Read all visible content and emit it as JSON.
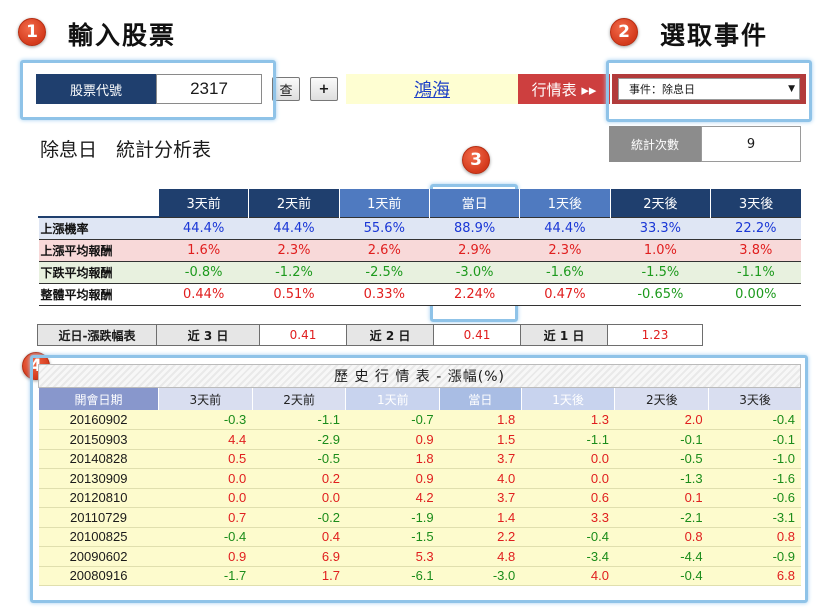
{
  "steps": [
    {
      "num": "1",
      "title": "輸入股票"
    },
    {
      "num": "2",
      "title": "選取事件"
    },
    {
      "num": "3"
    },
    {
      "num": "4"
    }
  ],
  "topbar": {
    "code_label": "股票代號",
    "code_value": "2317",
    "query_label": "查",
    "add_label": "+",
    "stock_name": "鴻海",
    "market_label": "行情表 ▸▸",
    "event_value": "事件：除息日"
  },
  "stats": {
    "title": "除息日　統計分析表",
    "count_label": "統計次數",
    "count_value": "9",
    "columns": [
      "3天前",
      "2天前",
      "1天前",
      "當日",
      "1天後",
      "2天後",
      "3天後"
    ],
    "rows": [
      {
        "label": "上漲機率",
        "values": [
          "44.4%",
          "44.4%",
          "55.6%",
          "88.9%",
          "44.4%",
          "33.3%",
          "22.2%"
        ]
      },
      {
        "label": "上漲平均報酬",
        "values": [
          "1.6%",
          "2.3%",
          "2.6%",
          "2.9%",
          "2.3%",
          "1.0%",
          "3.8%"
        ]
      },
      {
        "label": "下跌平均報酬",
        "values": [
          "-0.8%",
          "-1.2%",
          "-2.5%",
          "-3.0%",
          "-1.6%",
          "-1.5%",
          "-1.1%"
        ]
      },
      {
        "label": "整體平均報酬",
        "values": [
          "0.44%",
          "0.51%",
          "0.33%",
          "2.24%",
          "0.47%",
          "-0.65%",
          "0.00%"
        ]
      }
    ]
  },
  "recent": {
    "label": "近日-漲跌幅表",
    "items": [
      {
        "label": "近 3 日",
        "value": "0.41"
      },
      {
        "label": "近 2 日",
        "value": "0.41"
      },
      {
        "label": "近 1 日",
        "value": "1.23"
      }
    ]
  },
  "history": {
    "title": "歷 史 行 情 表 - 漲幅(%)",
    "date_header": "開會日期",
    "columns": [
      "3天前",
      "2天前",
      "1天前",
      "當日",
      "1天後",
      "2天後",
      "3天後"
    ],
    "rows": [
      {
        "date": "20160902",
        "values": [
          "-0.3",
          "-1.1",
          "-0.7",
          "1.8",
          "1.3",
          "2.0",
          "-0.4"
        ]
      },
      {
        "date": "20150903",
        "values": [
          "4.4",
          "-2.9",
          "0.9",
          "1.5",
          "-1.1",
          "-0.1",
          "-0.1"
        ]
      },
      {
        "date": "20140828",
        "values": [
          "0.5",
          "-0.5",
          "1.8",
          "3.7",
          "0.0",
          "-0.5",
          "-1.0"
        ]
      },
      {
        "date": "20130909",
        "values": [
          "0.0",
          "0.2",
          "0.9",
          "4.0",
          "0.0",
          "-1.3",
          "-1.6"
        ]
      },
      {
        "date": "20120810",
        "values": [
          "0.0",
          "0.0",
          "4.2",
          "3.7",
          "0.6",
          "0.1",
          "-0.6"
        ]
      },
      {
        "date": "20110729",
        "values": [
          "0.7",
          "-0.2",
          "-1.9",
          "1.4",
          "3.3",
          "-2.1",
          "-3.1"
        ]
      },
      {
        "date": "20100825",
        "values": [
          "-0.4",
          "0.4",
          "-1.5",
          "2.2",
          "-0.4",
          "0.8",
          "0.8"
        ]
      },
      {
        "date": "20090602",
        "values": [
          "0.9",
          "6.9",
          "5.3",
          "4.8",
          "-3.4",
          "-4.4",
          "-0.9"
        ]
      },
      {
        "date": "20080916",
        "values": [
          "-1.7",
          "1.7",
          "-6.1",
          "-3.0",
          "4.0",
          "-0.4",
          "6.8"
        ]
      }
    ]
  },
  "colors": {
    "navy": "#1f3f6e",
    "positive": "#e01e1e",
    "negative": "#1a8c1a",
    "badge": "#d43a1c"
  }
}
